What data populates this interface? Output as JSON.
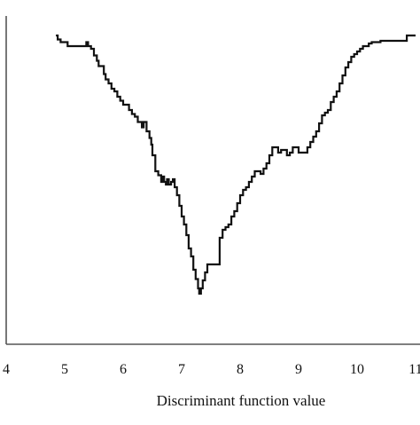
{
  "chart_data": {
    "type": "line",
    "title": "",
    "xlabel": "Discriminant function value",
    "ylabel": "",
    "xlim": [
      4,
      11
    ],
    "ylim": [
      0,
      1
    ],
    "x_ticks": [
      "4",
      "5",
      "6",
      "7",
      "8",
      "9",
      "10",
      "11"
    ],
    "y_ticks_visible": false,
    "grid": false,
    "legend": "none",
    "step": true,
    "colors": {
      "line": "#111111",
      "axis": "#555555",
      "background": "#ffffff"
    },
    "series": [
      {
        "x": [
          4.85,
          4.88,
          4.93,
          5.05,
          5.12,
          5.22,
          5.37,
          5.4,
          5.45,
          5.5,
          5.55,
          5.58,
          5.62,
          5.67,
          5.7,
          5.75,
          5.8,
          5.85,
          5.9,
          5.95,
          6.0,
          6.05,
          6.1,
          6.15,
          6.2,
          6.25,
          6.3,
          6.32,
          6.35,
          6.4,
          6.45,
          6.48,
          6.5,
          6.55,
          6.6,
          6.65,
          6.68,
          6.7,
          6.73,
          6.75,
          6.78,
          6.82,
          6.85,
          6.88,
          6.92,
          6.96,
          7.0,
          7.04,
          7.08,
          7.12,
          7.16,
          7.2,
          7.24,
          7.28,
          7.3,
          7.33,
          7.36,
          7.4,
          7.44,
          7.5,
          7.55,
          7.6,
          7.65,
          7.7,
          7.75,
          7.8,
          7.85,
          7.9,
          7.95,
          8.0,
          8.05,
          8.1,
          8.15,
          8.2,
          8.25,
          8.3,
          8.35,
          8.4,
          8.45,
          8.5,
          8.55,
          8.6,
          8.65,
          8.7,
          8.75,
          8.8,
          8.85,
          8.9,
          8.95,
          9.0,
          9.05,
          9.1,
          9.15,
          9.2,
          9.25,
          9.3,
          9.35,
          9.4,
          9.45,
          9.5,
          9.55,
          9.6,
          9.65,
          9.7,
          9.75,
          9.8,
          9.85,
          9.9,
          9.95,
          10.0,
          10.05,
          10.1,
          10.15,
          10.2,
          10.25,
          10.4,
          10.6,
          10.85,
          11.0
        ],
        "y": [
          1.0,
          0.985,
          0.975,
          0.96,
          0.96,
          0.96,
          0.975,
          0.96,
          0.95,
          0.925,
          0.905,
          0.885,
          0.885,
          0.855,
          0.835,
          0.82,
          0.8,
          0.79,
          0.77,
          0.755,
          0.74,
          0.74,
          0.72,
          0.705,
          0.695,
          0.675,
          0.675,
          0.655,
          0.675,
          0.64,
          0.615,
          0.59,
          0.55,
          0.49,
          0.475,
          0.45,
          0.47,
          0.45,
          0.44,
          0.46,
          0.44,
          0.45,
          0.46,
          0.43,
          0.4,
          0.36,
          0.32,
          0.29,
          0.25,
          0.2,
          0.17,
          0.12,
          0.085,
          0.05,
          0.03,
          0.05,
          0.08,
          0.11,
          0.14,
          0.14,
          0.14,
          0.14,
          0.24,
          0.27,
          0.28,
          0.29,
          0.32,
          0.34,
          0.37,
          0.4,
          0.42,
          0.43,
          0.45,
          0.47,
          0.49,
          0.49,
          0.48,
          0.5,
          0.52,
          0.55,
          0.58,
          0.58,
          0.56,
          0.57,
          0.57,
          0.55,
          0.56,
          0.58,
          0.58,
          0.56,
          0.56,
          0.56,
          0.58,
          0.6,
          0.62,
          0.64,
          0.67,
          0.7,
          0.71,
          0.72,
          0.75,
          0.77,
          0.79,
          0.82,
          0.85,
          0.88,
          0.9,
          0.92,
          0.93,
          0.94,
          0.95,
          0.96,
          0.96,
          0.97,
          0.975,
          0.98,
          0.98,
          1.0,
          1.0
        ]
      }
    ]
  }
}
